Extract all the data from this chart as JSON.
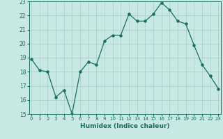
{
  "x": [
    0,
    1,
    2,
    3,
    4,
    5,
    6,
    7,
    8,
    9,
    10,
    11,
    12,
    13,
    14,
    15,
    16,
    17,
    18,
    19,
    20,
    21,
    22,
    23
  ],
  "y": [
    18.9,
    18.1,
    18.0,
    16.2,
    16.7,
    15.0,
    18.0,
    18.7,
    18.5,
    20.2,
    20.6,
    20.6,
    22.1,
    21.6,
    21.6,
    22.1,
    22.9,
    22.4,
    21.6,
    21.4,
    19.9,
    18.5,
    17.7,
    16.8
  ],
  "line_color": "#1a6e62",
  "marker_color": "#1a6e62",
  "bg_color": "#c8e8e4",
  "grid_color": "#a8ccca",
  "xlabel": "Humidex (Indice chaleur)",
  "ylim": [
    15,
    23
  ],
  "xlim": [
    -0.3,
    23.3
  ],
  "yticks": [
    15,
    16,
    17,
    18,
    19,
    20,
    21,
    22,
    23
  ],
  "xticks": [
    0,
    1,
    2,
    3,
    4,
    5,
    6,
    7,
    8,
    9,
    10,
    11,
    12,
    13,
    14,
    15,
    16,
    17,
    18,
    19,
    20,
    21,
    22,
    23
  ]
}
